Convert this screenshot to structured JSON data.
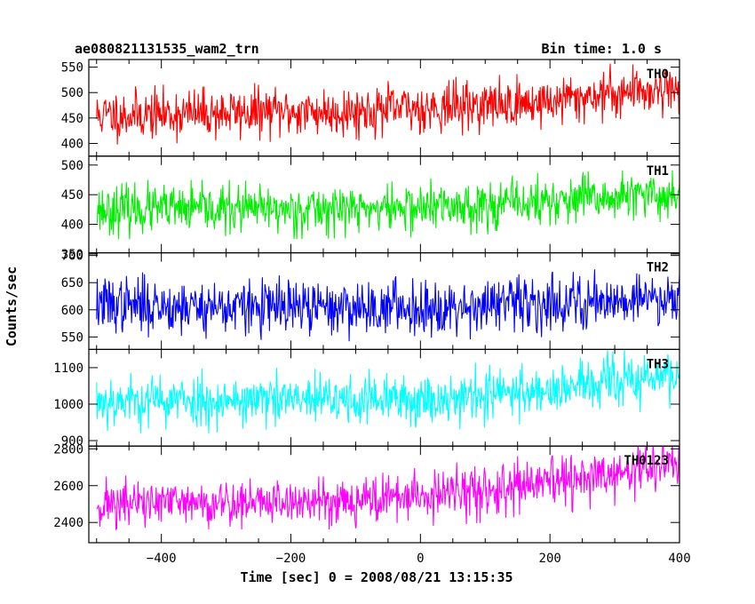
{
  "header": {
    "title": "ae080821131535_wam2_trn",
    "bin_time": "Bin time: 1.0 s"
  },
  "chart_data": {
    "type": "line",
    "xlabel": "Time [sec] 0 = 2008/08/21 13:15:35",
    "ylabel": "Counts/sec",
    "xlim": [
      -512,
      400
    ],
    "xticks_major": [
      -400,
      -200,
      0,
      200,
      400
    ],
    "xtick_labels": [
      "−400",
      "−200",
      "0",
      "200",
      "400"
    ],
    "panels": [
      {
        "name": "TH0",
        "color": "#ff0000",
        "ylim": [
          375,
          565
        ],
        "yticks": [
          400,
          450,
          500,
          550
        ],
        "ytick_labels": [
          "400",
          "450",
          "500",
          "550"
        ],
        "trend": [
          [
            -500,
            455
          ],
          [
            -300,
            460
          ],
          [
            -100,
            463
          ],
          [
            0,
            470
          ],
          [
            100,
            475
          ],
          [
            200,
            482
          ],
          [
            300,
            500
          ],
          [
            400,
            510
          ]
        ],
        "noise_sd": 24,
        "noise_max": 58,
        "seed": 11
      },
      {
        "name": "TH1",
        "color": "#00ee00",
        "ylim": [
          352,
          515
        ],
        "yticks": [
          350,
          400,
          450,
          500
        ],
        "ytick_labels": [
          "350",
          "400",
          "450",
          "500"
        ],
        "trend": [
          [
            -500,
            425
          ],
          [
            -200,
            425
          ],
          [
            0,
            428
          ],
          [
            200,
            438
          ],
          [
            400,
            450
          ]
        ],
        "noise_sd": 20,
        "noise_max": 50,
        "seed": 23
      },
      {
        "name": "TH2",
        "color": "#0000ff",
        "ylim": [
          527,
          705
        ],
        "yticks": [
          550,
          600,
          650,
          700
        ],
        "ytick_labels": [
          "550",
          "600",
          "650",
          "700"
        ],
        "trend": [
          [
            -500,
            610
          ],
          [
            -200,
            603
          ],
          [
            0,
            605
          ],
          [
            200,
            612
          ],
          [
            400,
            625
          ]
        ],
        "noise_sd": 25,
        "noise_max": 62,
        "seed": 37
      },
      {
        "name": "TH3",
        "color": "#00ffff",
        "ylim": [
          885,
          1150
        ],
        "yticks": [
          900,
          1000,
          1100
        ],
        "ytick_labels": [
          "900",
          "1000",
          "1100"
        ],
        "trend": [
          [
            -500,
            1010
          ],
          [
            -200,
            1010
          ],
          [
            0,
            1012
          ],
          [
            200,
            1040
          ],
          [
            400,
            1080
          ]
        ],
        "noise_sd": 35,
        "noise_max": 90,
        "seed": 53
      },
      {
        "name": "TH0123",
        "color": "#ff00ff",
        "ylim": [
          2290,
          2815
        ],
        "yticks": [
          2400,
          2600,
          2800
        ],
        "ytick_labels": [
          "2400",
          "2600",
          "2800"
        ],
        "trend": [
          [
            -500,
            2500
          ],
          [
            -200,
            2510
          ],
          [
            0,
            2540
          ],
          [
            100,
            2570
          ],
          [
            200,
            2610
          ],
          [
            300,
            2660
          ],
          [
            400,
            2730
          ]
        ],
        "noise_sd": 65,
        "noise_max": 170,
        "seed": 71
      }
    ]
  }
}
